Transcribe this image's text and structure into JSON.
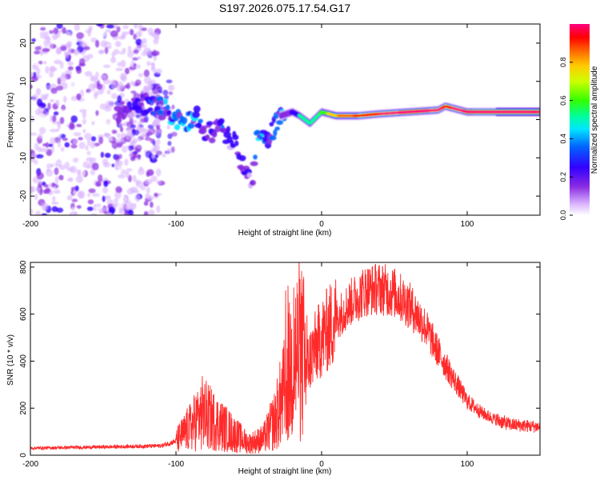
{
  "title": "S197.2026.075.17.54.G17",
  "chart_data": [
    {
      "type": "heatmap",
      "xlabel": "Height of straight line (km)",
      "ylabel": "Frequency (Hz)",
      "xlim": [
        -200,
        150
      ],
      "ylim": [
        -25,
        25
      ],
      "xticks": [
        -200,
        -100,
        0,
        100
      ],
      "xtick_labels": [
        "-200",
        "-100",
        "0",
        "100"
      ],
      "yticks": [
        -20,
        -10,
        0,
        10,
        20
      ],
      "ytick_labels": [
        "-20",
        "-10",
        "0",
        "10",
        "20"
      ],
      "colorbar": {
        "label": "Normalized spectral amplitude",
        "range": [
          0,
          1
        ],
        "ticks": [
          0,
          0.2,
          0.4,
          0.6,
          0.8
        ],
        "tick_labels": [
          "0.0",
          "0.2",
          "0.4",
          "0.6",
          "0.8"
        ]
      },
      "ridge": [
        {
          "x": -140,
          "y": 2,
          "a": 0.2
        },
        {
          "x": -125,
          "y": 4,
          "a": 0.3
        },
        {
          "x": -115,
          "y": 4,
          "a": 0.35
        },
        {
          "x": -105,
          "y": 2,
          "a": 0.4
        },
        {
          "x": -95,
          "y": -1,
          "a": 0.4
        },
        {
          "x": -85,
          "y": 1,
          "a": 0.35
        },
        {
          "x": -80,
          "y": -4,
          "a": 0.3
        },
        {
          "x": -70,
          "y": -2,
          "a": 0.3
        },
        {
          "x": -60,
          "y": -6,
          "a": 0.25
        },
        {
          "x": -55,
          "y": -12,
          "a": 0.3
        },
        {
          "x": -47,
          "y": -17,
          "a": 0.2
        },
        {
          "x": -45,
          "y": -4,
          "a": 0.4
        },
        {
          "x": -38,
          "y": -6,
          "a": 0.4
        },
        {
          "x": -33,
          "y": -2,
          "a": 0.35
        },
        {
          "x": -28,
          "y": 1,
          "a": 0.4
        },
        {
          "x": -20,
          "y": 2,
          "a": 0.45
        },
        {
          "x": -15,
          "y": 1,
          "a": 0.5
        },
        {
          "x": -8,
          "y": -1,
          "a": 0.5
        },
        {
          "x": 0,
          "y": 2,
          "a": 0.6
        },
        {
          "x": 10,
          "y": 1,
          "a": 0.7
        },
        {
          "x": 25,
          "y": 1,
          "a": 0.8
        },
        {
          "x": 40,
          "y": 1.5,
          "a": 0.85
        },
        {
          "x": 60,
          "y": 2,
          "a": 0.95
        },
        {
          "x": 80,
          "y": 2.5,
          "a": 0.9
        },
        {
          "x": 85,
          "y": 3.5,
          "a": 0.8
        },
        {
          "x": 100,
          "y": 2,
          "a": 0.95
        },
        {
          "x": 120,
          "y": 2,
          "a": 1.0
        },
        {
          "x": 150,
          "y": 2,
          "a": 1.0
        }
      ]
    },
    {
      "type": "line",
      "xlabel": "Height of straight line (km)",
      "ylabel": "SNR (10 * v/v)",
      "xlim": [
        -200,
        150
      ],
      "ylim": [
        0,
        820
      ],
      "xticks": [
        -200,
        -100,
        0,
        100
      ],
      "xtick_labels": [
        "-200",
        "-100",
        "0",
        "100"
      ],
      "yticks": [
        0,
        200,
        400,
        600,
        800
      ],
      "ytick_labels": [
        "0",
        "200",
        "400",
        "600",
        "800"
      ],
      "color": "#ff2a2a",
      "envelope": {
        "x": [
          -200,
          -150,
          -110,
          -100,
          -90,
          -82,
          -70,
          -60,
          -50,
          -40,
          -32,
          -25,
          -20,
          -15,
          -10,
          -5,
          0,
          10,
          20,
          30,
          40,
          50,
          60,
          70,
          80,
          90,
          100,
          110,
          120,
          130,
          150
        ],
        "y": [
          30,
          35,
          40,
          60,
          120,
          180,
          130,
          90,
          50,
          70,
          150,
          280,
          400,
          450,
          380,
          450,
          500,
          580,
          650,
          700,
          710,
          690,
          640,
          560,
          440,
          330,
          230,
          180,
          150,
          130,
          120
        ]
      }
    }
  ]
}
